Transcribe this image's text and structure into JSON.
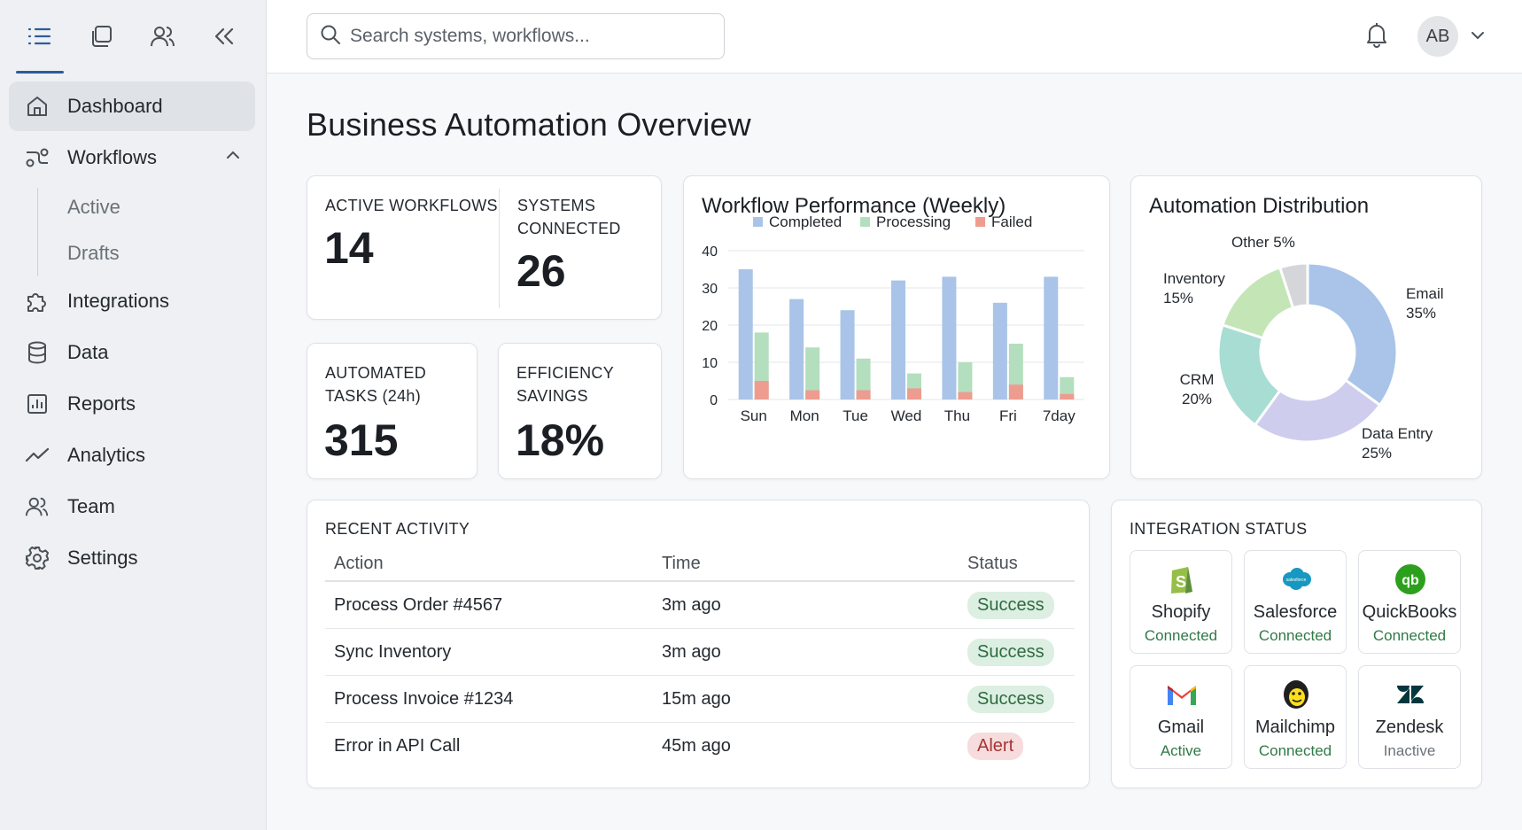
{
  "sidebar": {
    "nav": [
      {
        "label": "Dashboard",
        "icon": "home-icon",
        "active": true
      },
      {
        "label": "Workflows",
        "icon": "workflow-icon",
        "expanded": true
      },
      {
        "label": "Integrations",
        "icon": "puzzle-icon"
      },
      {
        "label": "Data",
        "icon": "database-icon"
      },
      {
        "label": "Reports",
        "icon": "report-icon"
      },
      {
        "label": "Analytics",
        "icon": "analytics-icon"
      },
      {
        "label": "Team",
        "icon": "team-icon"
      },
      {
        "label": "Settings",
        "icon": "gear-icon"
      }
    ],
    "workflow_sub": [
      "Active",
      "Drafts"
    ]
  },
  "topbar": {
    "search_placeholder": "Search systems, workflows...",
    "avatar_initials": "AB"
  },
  "page_title": "Business Automation Overview",
  "kpis": {
    "active_workflows": {
      "label": "ACTIVE WORKFLOWS",
      "value": "14"
    },
    "systems_connected": {
      "label_line1": "SYSTEMS",
      "label_line2": "CONNECTED",
      "value": "26"
    },
    "automated_tasks": {
      "label_line1": "AUTOMATED",
      "label_line2": "TASKS (24h)",
      "value": "315"
    },
    "efficiency_savings": {
      "label_line1": "EFFICIENCY",
      "label_line2": "SAVINGS",
      "value": "18%"
    }
  },
  "chart_data": [
    {
      "type": "bar",
      "title": "Workflow Performance (Weekly)",
      "categories": [
        "Sun",
        "Mon",
        "Tue",
        "Wed",
        "Thu",
        "Fri",
        "7day"
      ],
      "series": [
        {
          "name": "Completed",
          "color": "#a9c4e8",
          "values": [
            35,
            27,
            24,
            32,
            33,
            26,
            33
          ]
        },
        {
          "name": "Processing",
          "color": "#b3dfbf",
          "values": [
            18,
            14,
            11,
            7,
            10,
            15,
            6
          ]
        },
        {
          "name": "Failed",
          "color": "#ee9c90",
          "values": [
            5,
            2.5,
            2.5,
            3,
            2,
            4,
            1.5
          ]
        }
      ],
      "ylim": [
        0,
        40
      ],
      "yticks": [
        "0",
        "10",
        "20",
        "30",
        "40"
      ],
      "grid": true,
      "legend": "top"
    },
    {
      "type": "pie",
      "title": "Automation Distribution",
      "slices": [
        {
          "label": "Email",
          "pct_label": "35%",
          "value": 35,
          "color": "#a9c4e8"
        },
        {
          "label": "Data Entry",
          "pct_label": "25%",
          "value": 25,
          "color": "#cfcdee"
        },
        {
          "label": "CRM",
          "pct_label": "20%",
          "value": 20,
          "color": "#a8ddd3"
        },
        {
          "label": "Inventory",
          "pct_label": "15%",
          "value": 15,
          "color": "#c4e6b6"
        },
        {
          "label": "Other",
          "pct_label": "5%",
          "value": 5,
          "color": "#d4d6d9"
        }
      ]
    }
  ],
  "recent_activity": {
    "title": "RECENT ACTIVITY",
    "columns": [
      "Action",
      "Time",
      "Status"
    ],
    "rows": [
      {
        "action": "Process Order #4567",
        "time": "3m ago",
        "status": "Success",
        "kind": "success"
      },
      {
        "action": "Sync Inventory",
        "time": "3m ago",
        "status": "Success",
        "kind": "success"
      },
      {
        "action": "Process Invoice #1234",
        "time": "15m ago",
        "status": "Success",
        "kind": "success"
      },
      {
        "action": "Error in API Call",
        "time": "45m ago",
        "status": "Alert",
        "kind": "alert"
      }
    ]
  },
  "integration_status": {
    "title": "INTEGRATION STATUS",
    "items": [
      {
        "name": "Shopify",
        "status": "Connected",
        "icon": "shopify-icon"
      },
      {
        "name": "Salesforce",
        "status": "Connected",
        "icon": "salesforce-icon",
        "logo_text": "salesforce"
      },
      {
        "name": "QuickBooks",
        "status": "Connected",
        "icon": "quickbooks-icon",
        "logo_text": "qb"
      },
      {
        "name": "Gmail",
        "status": "Active",
        "icon": "gmail-icon"
      },
      {
        "name": "Mailchimp",
        "status": "Connected",
        "icon": "mailchimp-icon"
      },
      {
        "name": "Zendesk",
        "status": "Inactive",
        "icon": "zendesk-icon"
      }
    ]
  }
}
